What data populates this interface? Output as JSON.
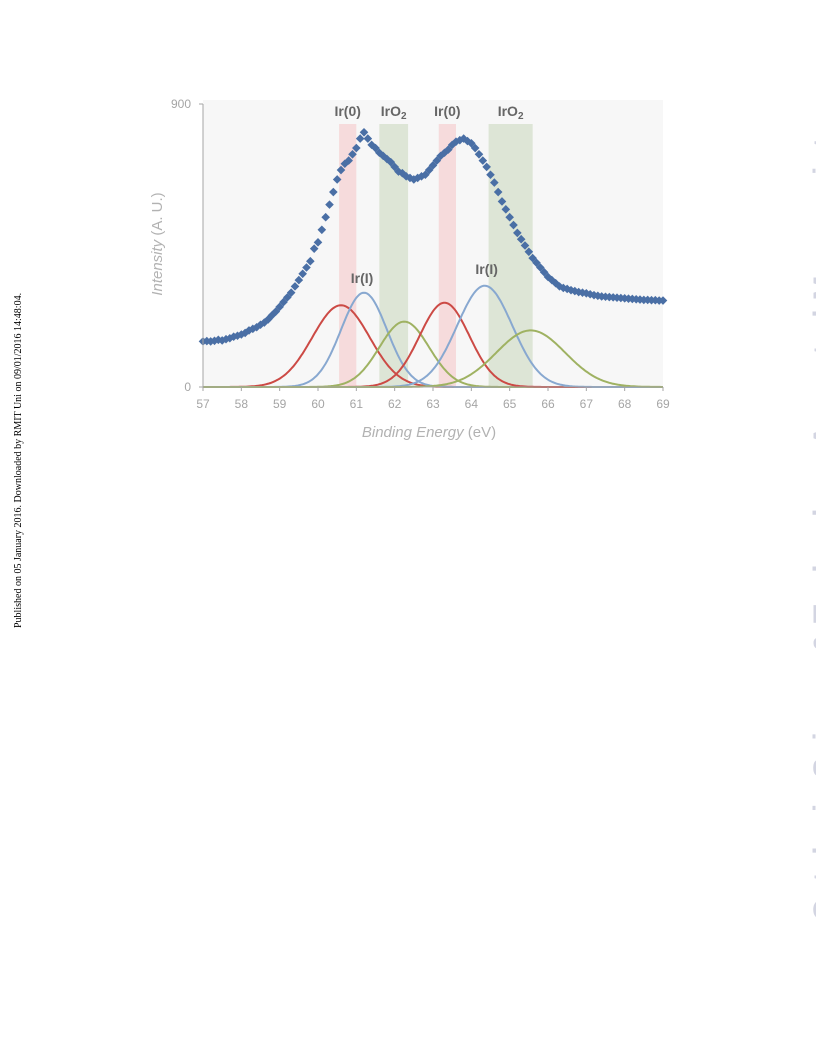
{
  "side_note": "Published on 05 January 2016. Downloaded by RMIT Uni on 09/01/2016 14:48:04.",
  "watermark": "Catalysis Science & Technology Accepted Manuscript",
  "colors": {
    "data_points": "#4a6fa5",
    "ir0_fit": "#cc4a45",
    "ir1_fit": "#88a8d0",
    "iro2_fit": "#9fb262",
    "ir0_band": "#f6d6d7",
    "iro2_band": "#d8e2d0",
    "plot_bg": "#f7f7f7"
  },
  "chart_data": {
    "type": "scatter",
    "title": "",
    "xlabel": {
      "main": "Binding Energy",
      "unit": "(eV)"
    },
    "ylabel": {
      "main": "Intensity",
      "unit": "(A. U.)"
    },
    "xlim": [
      57,
      69
    ],
    "ylim": [
      0,
      900
    ],
    "x_ticks": [
      "57",
      "58",
      "59",
      "60",
      "61",
      "62",
      "63",
      "64",
      "65",
      "66",
      "67",
      "68",
      "69"
    ],
    "y_ticks": [
      "0",
      "900"
    ],
    "bands": [
      {
        "label": "Ir(0)",
        "label_sub": "",
        "x_range": [
          60.55,
          61.0
        ],
        "color_key": "ir0_band"
      },
      {
        "label": "IrO",
        "label_sub": "2",
        "x_range": [
          61.6,
          62.35
        ],
        "color_key": "iro2_band"
      },
      {
        "label": "Ir(0)",
        "label_sub": "",
        "x_range": [
          63.15,
          63.6
        ],
        "color_key": "ir0_band"
      },
      {
        "label": "IrO",
        "label_sub": "2",
        "x_range": [
          64.45,
          65.6
        ],
        "color_key": "iro2_band"
      }
    ],
    "peak_labels": [
      {
        "text": "Ir(I)",
        "x": 61.15,
        "y": 330
      },
      {
        "text": "Ir(I)",
        "x": 64.4,
        "y": 360
      }
    ],
    "fit_components": [
      {
        "center": 60.6,
        "amplitude": 260,
        "sigma": 0.75,
        "color_key": "ir0_fit"
      },
      {
        "center": 61.2,
        "amplitude": 300,
        "sigma": 0.6,
        "color_key": "ir1_fit"
      },
      {
        "center": 62.25,
        "amplitude": 208,
        "sigma": 0.65,
        "color_key": "iro2_fit"
      },
      {
        "center": 63.3,
        "amplitude": 268,
        "sigma": 0.65,
        "color_key": "ir0_fit"
      },
      {
        "center": 64.35,
        "amplitude": 322,
        "sigma": 0.72,
        "color_key": "ir1_fit"
      },
      {
        "center": 65.55,
        "amplitude": 180,
        "sigma": 0.9,
        "color_key": "iro2_fit"
      }
    ],
    "series": [
      {
        "marker": "diamond",
        "x": [
          57.0,
          57.1,
          57.2,
          57.3,
          57.4,
          57.5,
          57.6,
          57.7,
          57.8,
          57.9,
          58.0,
          58.1,
          58.2,
          58.3,
          58.4,
          58.5,
          58.6,
          58.7,
          58.8,
          58.9,
          59.0,
          59.1,
          59.2,
          59.3,
          59.4,
          59.5,
          59.6,
          59.7,
          59.8,
          59.9,
          60.0,
          60.1,
          60.2,
          60.3,
          60.4,
          60.5,
          60.6,
          60.7,
          60.8,
          60.9,
          61.0,
          61.1,
          61.2,
          61.3,
          61.4,
          61.5,
          61.6,
          61.7,
          61.8,
          61.9,
          62.0,
          62.1,
          62.2,
          62.3,
          62.4,
          62.5,
          62.6,
          62.7,
          62.8,
          62.9,
          63.0,
          63.1,
          63.2,
          63.3,
          63.4,
          63.5,
          63.6,
          63.7,
          63.8,
          63.9,
          64.0,
          64.1,
          64.2,
          64.3,
          64.4,
          64.5,
          64.6,
          64.7,
          64.8,
          64.9,
          65.0,
          65.1,
          65.2,
          65.3,
          65.4,
          65.5,
          65.6,
          65.7,
          65.8,
          65.9,
          66.0,
          66.1,
          66.2,
          66.3,
          66.4,
          66.5,
          66.6,
          66.7,
          66.8,
          66.9,
          67.0,
          67.1,
          67.2,
          67.3,
          67.4,
          67.5,
          67.6,
          67.7,
          67.8,
          67.9,
          68.0,
          68.1,
          68.2,
          68.3,
          68.4,
          68.5,
          68.6,
          68.7,
          68.8,
          68.9,
          69.0
        ],
        "y": [
          145,
          146,
          145,
          147,
          150,
          148,
          152,
          155,
          160,
          163,
          167,
          172,
          180,
          185,
          190,
          198,
          205,
          215,
          228,
          240,
          255,
          270,
          285,
          300,
          320,
          340,
          360,
          380,
          400,
          440,
          460,
          500,
          540,
          580,
          620,
          660,
          690,
          710,
          720,
          740,
          760,
          790,
          810,
          790,
          770,
          760,
          745,
          735,
          725,
          715,
          700,
          685,
          680,
          670,
          665,
          660,
          665,
          670,
          675,
          690,
          705,
          720,
          735,
          745,
          755,
          770,
          780,
          785,
          790,
          782,
          775,
          760,
          740,
          720,
          700,
          675,
          650,
          620,
          590,
          565,
          540,
          515,
          490,
          470,
          450,
          430,
          410,
          395,
          380,
          365,
          350,
          340,
          330,
          320,
          315,
          312,
          308,
          305,
          302,
          300,
          298,
          295,
          292,
          290,
          288,
          287,
          286,
          285,
          284,
          283,
          282,
          281,
          280,
          279,
          278,
          277,
          277,
          276,
          276,
          275,
          275
        ]
      }
    ]
  }
}
